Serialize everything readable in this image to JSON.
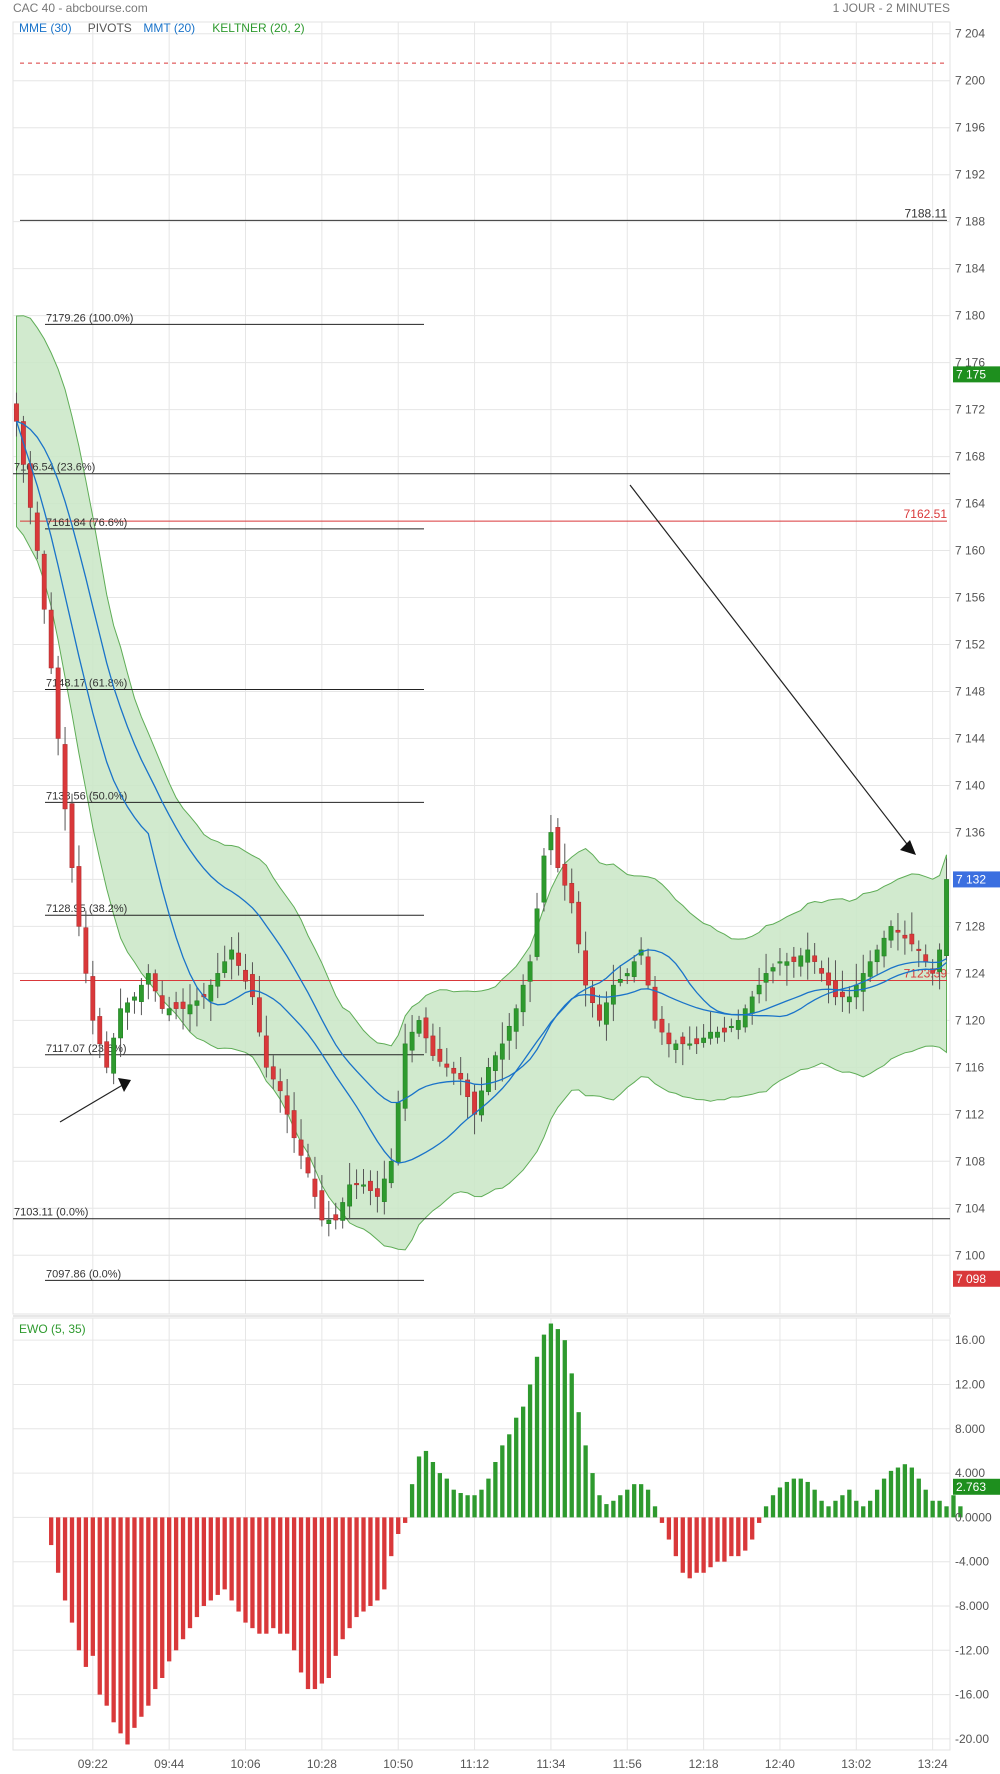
{
  "header": {
    "title": "CAC 40 - abcbourse.com",
    "period": "1 JOUR - 2 MINUTES"
  },
  "colors": {
    "up": "#2e9a2e",
    "down": "#d9383a",
    "mme": "#1a73c9",
    "keltner_fill": "#c9e6c6",
    "keltner_line": "#5fad57",
    "price_tag_green": "#1e8f1e",
    "price_tag_blue": "#3b6fe0",
    "pivot_red": "#d9383a",
    "fib_line": "#222222"
  },
  "chart_data": [
    {
      "type": "candlestick",
      "legend": [
        {
          "label": "MME (30)",
          "color": "#1a73c9"
        },
        {
          "label": "PIVOTS",
          "color": "#555555"
        },
        {
          "label": "MMT (20)",
          "color": "#1a73c9"
        },
        {
          "label": "KELTNER (20, 2)",
          "color": "#2e9a2e"
        }
      ],
      "ylim": [
        7095,
        7205
      ],
      "y_ticks": [
        "7 204",
        "7 200",
        "7 196",
        "7 192",
        "7 188",
        "7 184",
        "7 180",
        "7 176",
        "7 172",
        "7 168",
        "7 164",
        "7 160",
        "7 156",
        "7 152",
        "7 148",
        "7 144",
        "7 140",
        "7 136",
        "7 132",
        "7 128",
        "7 124",
        "7 120",
        "7 116",
        "7 112",
        "7 108",
        "7 104",
        "7 100"
      ],
      "y_tick_values": [
        7204,
        7200,
        7196,
        7192,
        7188,
        7184,
        7180,
        7176,
        7172,
        7168,
        7164,
        7160,
        7156,
        7152,
        7148,
        7144,
        7140,
        7136,
        7132,
        7128,
        7124,
        7120,
        7116,
        7112,
        7108,
        7104,
        7100
      ],
      "x_ticks": [
        "09:22",
        "09:44",
        "10:06",
        "10:28",
        "10:50",
        "11:12",
        "11:34",
        "11:56",
        "12:18",
        "12:40",
        "13:02",
        "13:24"
      ],
      "x_tick_bars": [
        11,
        22,
        33,
        44,
        55,
        66,
        77,
        88,
        99,
        110,
        121,
        132
      ],
      "close_anchors": [
        [
          0,
          7171
        ],
        [
          3,
          7160
        ],
        [
          5,
          7150
        ],
        [
          7,
          7138
        ],
        [
          9,
          7128
        ],
        [
          11,
          7120
        ],
        [
          13,
          7116
        ],
        [
          15,
          7121
        ],
        [
          17,
          7122
        ],
        [
          19,
          7124
        ],
        [
          21,
          7121
        ],
        [
          24,
          7121
        ],
        [
          27,
          7122
        ],
        [
          29,
          7124
        ],
        [
          31,
          7126
        ],
        [
          34,
          7122
        ],
        [
          36,
          7116
        ],
        [
          38,
          7114
        ],
        [
          40,
          7110
        ],
        [
          42,
          7107
        ],
        [
          44,
          7103
        ],
        [
          46,
          7103
        ],
        [
          48,
          7106
        ],
        [
          50,
          7106
        ],
        [
          52,
          7105
        ],
        [
          54,
          7108
        ],
        [
          56,
          7118
        ],
        [
          58,
          7120
        ],
        [
          60,
          7117
        ],
        [
          62,
          7116
        ],
        [
          64,
          7115
        ],
        [
          66,
          7112
        ],
        [
          68,
          7116
        ],
        [
          70,
          7118
        ],
        [
          72,
          7121
        ],
        [
          74,
          7125
        ],
        [
          76,
          7134
        ],
        [
          77,
          7136
        ],
        [
          78,
          7133
        ],
        [
          80,
          7130
        ],
        [
          82,
          7123
        ],
        [
          84,
          7120
        ],
        [
          86,
          7123
        ],
        [
          88,
          7124
        ],
        [
          90,
          7126
        ],
        [
          92,
          7120
        ],
        [
          94,
          7118
        ],
        [
          96,
          7118
        ],
        [
          98,
          7118
        ],
        [
          100,
          7119
        ],
        [
          102,
          7119
        ],
        [
          104,
          7120
        ],
        [
          106,
          7122
        ],
        [
          108,
          7124
        ],
        [
          110,
          7125
        ],
        [
          112,
          7125
        ],
        [
          114,
          7126
        ],
        [
          116,
          7124
        ],
        [
          118,
          7122
        ],
        [
          120,
          7122
        ],
        [
          122,
          7124
        ],
        [
          124,
          7126
        ],
        [
          126,
          7128
        ],
        [
          128,
          7127
        ],
        [
          130,
          7126
        ],
        [
          132,
          7124
        ],
        [
          133,
          7126
        ],
        [
          134,
          7132
        ]
      ],
      "pivots": [
        {
          "value": 7201.5,
          "label": "",
          "style": "red-dashed"
        },
        {
          "value": 7188.11,
          "label": "7188.11",
          "style": "black"
        },
        {
          "value": 7162.51,
          "label": "7162.51",
          "style": "red"
        },
        {
          "value": 7123.39,
          "label": "7123.39",
          "style": "red"
        }
      ],
      "fibonacci_top": [
        {
          "value": 7179.26,
          "label": "7179.26  (100.0%)"
        },
        {
          "value": 7161.84,
          "label": "7161.84  (76.6%)"
        },
        {
          "value": 7148.17,
          "label": "7148.17  (61.8%)"
        },
        {
          "value": 7138.56,
          "label": "7138.56  (50.0%)"
        },
        {
          "value": 7128.95,
          "label": "7128.95  (38.2%)"
        },
        {
          "value": 7117.07,
          "label": "7117.07  (23.6%)"
        },
        {
          "value": 7097.86,
          "label": "7097.86  (0.0%)"
        }
      ],
      "fibonacci_long": [
        {
          "value": 7166.54,
          "label": "7166.54  (23.6%)"
        },
        {
          "value": 7103.11,
          "label": "7103.11  (0.0%)"
        }
      ],
      "price_tags": [
        {
          "value": 7175,
          "label": "7 175",
          "color": "#1e8f1e"
        },
        {
          "value": 7132,
          "label": "7 132",
          "color": "#3b6fe0"
        },
        {
          "value": 7098,
          "label": "7 098",
          "color": "#d9383a"
        }
      ]
    },
    {
      "type": "bar",
      "legend": [
        {
          "label": "EWO (5, 35)",
          "color": "#2e9a2e"
        }
      ],
      "ylim": [
        -21,
        18
      ],
      "y_ticks": [
        "16.00",
        "12.00",
        "8.000",
        "4.000",
        "0.0000",
        "-4.000",
        "-8.000",
        "-12.00",
        "-16.00",
        "-20.00"
      ],
      "y_tick_values": [
        16,
        12,
        8,
        4,
        0,
        -4,
        -8,
        -12,
        -16,
        -20
      ],
      "start_bar": 5,
      "values": [
        -2.5,
        -5,
        -7.5,
        -9.5,
        -12,
        -13.5,
        -12.5,
        -16,
        -17,
        -18.5,
        -19.5,
        -20.5,
        -19,
        -18,
        -17,
        -15.5,
        -14.5,
        -13,
        -12,
        -11,
        -10,
        -9,
        -8,
        -7.5,
        -7,
        -6.5,
        -7.5,
        -8.5,
        -9.5,
        -10,
        -10.5,
        -10.5,
        -10,
        -10.5,
        -10.5,
        -12,
        -14,
        -15.5,
        -15.5,
        -15,
        -14.5,
        -12.5,
        -11,
        -10,
        -9,
        -8.5,
        -8,
        -7.5,
        -6.5,
        -3.5,
        -1.5,
        -0.5,
        3,
        5.5,
        6,
        5,
        4,
        3.5,
        2.5,
        2.2,
        2,
        2,
        2.5,
        3.5,
        5,
        6.5,
        7.5,
        9,
        10,
        12,
        14.5,
        16.5,
        17.5,
        17,
        16,
        13,
        9.5,
        6.5,
        4,
        2,
        1.2,
        1.5,
        2,
        2.5,
        3,
        3,
        2.5,
        1,
        -0.5,
        -2,
        -3.5,
        -5,
        -5.5,
        -5,
        -5,
        -4.5,
        -4,
        -4,
        -3.5,
        -3.5,
        -3,
        -2,
        -0.5,
        1,
        2,
        2.7,
        3.2,
        3.5,
        3.5,
        3.2,
        2.5,
        1.5,
        1,
        1.5,
        2,
        2.5,
        1.5,
        1,
        1.5,
        2.5,
        3.5,
        4.2,
        4.5,
        4.8,
        4.5,
        3.5,
        2.5,
        1.5,
        1.5,
        1,
        2,
        1
      ],
      "price_tag": {
        "value": 2.763,
        "label": "2.763",
        "color": "#1e8f1e"
      }
    }
  ]
}
